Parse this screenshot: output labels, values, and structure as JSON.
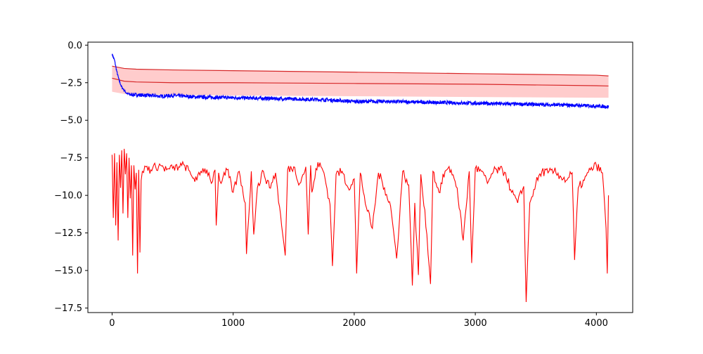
{
  "chart_data": {
    "type": "line",
    "title": "",
    "xlabel": "",
    "ylabel": "",
    "xlim": [
      -200,
      4300
    ],
    "ylim": [
      -17.8,
      0.2
    ],
    "x_ticks": [
      0,
      1000,
      2000,
      3000,
      4000
    ],
    "x_tick_labels": [
      "0",
      "1000",
      "2000",
      "3000",
      "4000"
    ],
    "y_ticks": [
      0.0,
      -2.5,
      -5.0,
      -7.5,
      -10.0,
      -12.5,
      -15.0,
      -17.5
    ],
    "y_tick_labels": [
      "0.0",
      "−2.5",
      "−5.0",
      "−7.5",
      "−10.0",
      "−12.5",
      "−15.0",
      "−17.5"
    ],
    "grid": false,
    "legend": "none",
    "colors": {
      "blue": "#0000ff",
      "red": "#ff0000",
      "band_line": "#d62728",
      "band_fill": "#ff9999"
    },
    "series": [
      {
        "style": "band",
        "x": [
          0,
          100,
          200,
          500,
          1000,
          2000,
          3000,
          4000,
          4100
        ],
        "upper": [
          -1.4,
          -1.55,
          -1.6,
          -1.65,
          -1.7,
          -1.8,
          -1.9,
          -2.0,
          -2.05
        ],
        "mean": [
          -2.2,
          -2.4,
          -2.45,
          -2.5,
          -2.5,
          -2.55,
          -2.6,
          -2.7,
          -2.72
        ],
        "lower": [
          -3.1,
          -3.25,
          -3.3,
          -3.3,
          -3.35,
          -3.4,
          -3.45,
          -3.5,
          -3.5
        ]
      },
      {
        "style": "line",
        "color": "#0000ff",
        "x": [
          0,
          20,
          40,
          60,
          80,
          100,
          120,
          150,
          200,
          300,
          400,
          500,
          700,
          1000,
          1300,
          1600,
          1800,
          2000,
          2300,
          2600,
          2900,
          3200,
          3500,
          3800,
          4000,
          4100
        ],
        "y": [
          -0.6,
          -1.0,
          -1.8,
          -2.4,
          -2.8,
          -3.0,
          -3.2,
          -3.3,
          -3.3,
          -3.35,
          -3.4,
          -3.35,
          -3.45,
          -3.5,
          -3.55,
          -3.6,
          -3.65,
          -3.75,
          -3.75,
          -3.8,
          -3.85,
          -3.9,
          -3.95,
          -4.0,
          -4.05,
          -4.1
        ],
        "noise": 0.12
      },
      {
        "style": "line",
        "color": "#ff0000",
        "x": [
          0,
          10,
          20,
          30,
          40,
          50,
          60,
          70,
          80,
          90,
          100,
          110,
          120,
          130,
          140,
          150,
          160,
          170,
          180,
          190,
          200,
          210,
          220,
          230,
          240,
          250,
          280,
          320,
          360,
          400,
          450,
          500,
          550,
          600,
          650,
          700,
          750,
          800,
          820,
          850,
          860,
          880,
          900,
          950,
          1000,
          1050,
          1100,
          1110,
          1150,
          1170,
          1200,
          1250,
          1300,
          1350,
          1400,
          1430,
          1450,
          1500,
          1550,
          1600,
          1620,
          1640,
          1650,
          1700,
          1750,
          1800,
          1820,
          1850,
          1900,
          1950,
          2000,
          2020,
          2050,
          2100,
          2150,
          2200,
          2250,
          2300,
          2350,
          2400,
          2450,
          2480,
          2500,
          2530,
          2550,
          2600,
          2630,
          2650,
          2700,
          2750,
          2800,
          2850,
          2900,
          2950,
          2970,
          3000,
          3050,
          3100,
          3150,
          3200,
          3250,
          3300,
          3350,
          3400,
          3420,
          3450,
          3500,
          3550,
          3600,
          3650,
          3700,
          3750,
          3800,
          3820,
          3850,
          3900,
          3950,
          4000,
          4050,
          4080,
          4090,
          4100
        ],
        "y": [
          -7.3,
          -11.5,
          -7.2,
          -12.0,
          -7.8,
          -13.0,
          -7.3,
          -9.5,
          -7.0,
          -11.2,
          -6.9,
          -8.6,
          -7.2,
          -11.5,
          -7.5,
          -10.2,
          -8.0,
          -14.0,
          -8.0,
          -9.6,
          -8.5,
          -15.2,
          -8.3,
          -13.8,
          -9.0,
          -8.4,
          -8.1,
          -8.3,
          -8.1,
          -8.0,
          -8.3,
          -8.2,
          -8.1,
          -8.0,
          -8.6,
          -9.0,
          -8.2,
          -8.5,
          -9.2,
          -8.3,
          -12.0,
          -8.5,
          -9.2,
          -8.3,
          -9.8,
          -8.4,
          -10.5,
          -13.9,
          -8.4,
          -12.6,
          -9.5,
          -8.4,
          -9.5,
          -8.5,
          -12.0,
          -14.0,
          -8.3,
          -8.1,
          -9.2,
          -8.1,
          -12.6,
          -8.0,
          -9.8,
          -7.8,
          -8.5,
          -10.6,
          -14.7,
          -8.6,
          -8.4,
          -9.5,
          -8.9,
          -15.2,
          -8.5,
          -10.8,
          -12.2,
          -8.5,
          -9.5,
          -10.7,
          -14.2,
          -8.4,
          -9.3,
          -16.0,
          -10.5,
          -15.3,
          -8.6,
          -12.6,
          -15.9,
          -8.4,
          -9.8,
          -8.4,
          -8.3,
          -9.5,
          -13.0,
          -8.4,
          -14.5,
          -8.2,
          -8.4,
          -9.2,
          -8.4,
          -8.3,
          -8.5,
          -9.8,
          -10.5,
          -9.4,
          -17.1,
          -10.5,
          -9.2,
          -8.4,
          -8.5,
          -8.4,
          -8.7,
          -9.0,
          -8.5,
          -14.3,
          -9.5,
          -9.0,
          -8.3,
          -8.0,
          -8.5,
          -12.2,
          -15.2,
          -10.0
        ]
      }
    ]
  }
}
